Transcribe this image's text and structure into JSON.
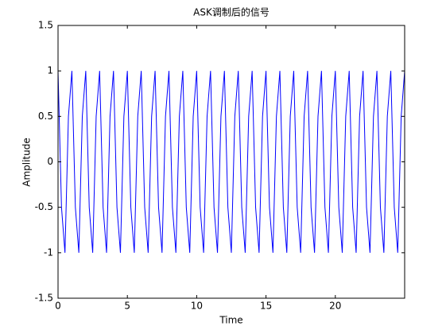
{
  "chart_data": {
    "type": "line",
    "title": "ASK调制后的信号",
    "x_label": "Time",
    "y_label": "Amplitude",
    "color": "#0000ff",
    "x": [
      0,
      0.25,
      0.5,
      0.75,
      1,
      1.25,
      1.5,
      1.75,
      2,
      2.25,
      2.5,
      2.75,
      3,
      3.25,
      3.5,
      3.75,
      4,
      4.25,
      4.5,
      4.75,
      5,
      5.25,
      5.5,
      5.75,
      6,
      6.25,
      6.5,
      6.75,
      7,
      7.25,
      7.5,
      7.75,
      8,
      8.25,
      8.5,
      8.75,
      9,
      9.25,
      9.5,
      9.75,
      10,
      10.25,
      10.5,
      10.75,
      11,
      11.25,
      11.5,
      11.75,
      12,
      12.25,
      12.5,
      12.75,
      13,
      13.25,
      13.5,
      13.75,
      14,
      14.25,
      14.5,
      14.75,
      15,
      15.25,
      15.5,
      15.75,
      16,
      16.25,
      16.5,
      16.75,
      17,
      17.25,
      17.5,
      17.75,
      18,
      18.25,
      18.5,
      18.75,
      19,
      19.25,
      19.5,
      19.75,
      20,
      20.25,
      20.5,
      20.75,
      21,
      21.25,
      21.5,
      21.75,
      22,
      22.25,
      22.5,
      22.75,
      23,
      23.25,
      23.5,
      23.75,
      24,
      24.25,
      24.5,
      24.75,
      25
    ],
    "values": [
      1,
      -0.5,
      -1,
      0.5,
      1,
      -0.5,
      -1,
      0.5,
      1,
      -0.5,
      -1,
      0.5,
      1,
      -0.5,
      -1,
      0.5,
      1,
      -0.5,
      -1,
      0.5,
      1,
      -0.5,
      -1,
      0.5,
      1,
      -0.5,
      -1,
      0.5,
      1,
      -0.5,
      -1,
      0.5,
      1,
      -0.5,
      -1,
      0.5,
      1,
      -0.5,
      -1,
      0.5,
      1,
      -0.5,
      -1,
      0.5,
      1,
      -0.5,
      -1,
      0.5,
      1,
      -0.5,
      -1,
      0.5,
      1,
      -0.5,
      -1,
      0.5,
      1,
      -0.5,
      -1,
      0.5,
      1,
      -0.5,
      -1,
      0.5,
      1,
      -0.5,
      -1,
      0.5,
      1,
      -0.5,
      -1,
      0.5,
      1,
      -0.5,
      -1,
      0.5,
      1,
      -0.5,
      -1,
      0.5,
      1,
      -0.5,
      -1,
      0.5,
      1,
      -0.5,
      -1,
      0.5,
      1,
      -0.5,
      -1,
      0.5,
      1,
      -0.5,
      -1,
      0.5,
      1,
      -0.5,
      -1,
      0.5,
      1
    ],
    "xlim": [
      0,
      25
    ],
    "xticks": [
      0,
      5,
      10,
      15,
      20
    ],
    "ylim": [
      -1.5,
      1.5
    ],
    "yticks": [
      -1.5,
      -1,
      -0.5,
      0,
      0.5,
      1,
      1.5
    ]
  }
}
